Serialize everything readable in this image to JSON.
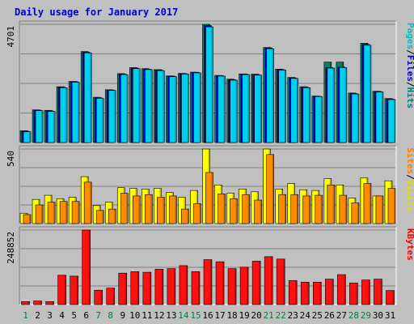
{
  "chart_data": {
    "type": "bar",
    "title": "Daily usage for January 2017",
    "categories": [
      "1",
      "2",
      "3",
      "4",
      "5",
      "6",
      "7",
      "8",
      "9",
      "10",
      "11",
      "12",
      "13",
      "14",
      "15",
      "16",
      "17",
      "18",
      "19",
      "20",
      "21",
      "22",
      "23",
      "24",
      "25",
      "26",
      "27",
      "28",
      "29",
      "30",
      "31"
    ],
    "weekend_days": [
      "1",
      "7",
      "8",
      "14",
      "15",
      "21",
      "22",
      "28",
      "29"
    ],
    "panels": [
      {
        "id": "top",
        "ymax": 4701,
        "ymax_label": "4701",
        "legend": [
          {
            "text": "Pages",
            "color": "#00c0c0"
          },
          {
            "text": "/",
            "color": "#000000"
          },
          {
            "text": "Files",
            "color": "#0000cc"
          },
          {
            "text": "/",
            "color": "#000000"
          },
          {
            "text": "Hits",
            "color": "#008080"
          }
        ],
        "series": [
          {
            "name": "Hits",
            "color": "#00806a",
            "values": [
              470,
              1300,
              1280,
              2220,
              2430,
              3620,
              1800,
              2100,
              2740,
              2980,
              2940,
              2900,
              2650,
              2750,
              2800,
              4701,
              2670,
              2520,
              2730,
              2720,
              3780,
              2920,
              2590,
              2220,
              1850,
              3200,
              3200,
              1970,
              3950,
              2040,
              1750
            ]
          },
          {
            "name": "Files",
            "color": "#0000cc",
            "values": [
              450,
              1290,
              1260,
              2200,
              2420,
              3590,
              1780,
              2090,
              2720,
              2960,
              2920,
              2880,
              2640,
              2740,
              2790,
              4650,
              2660,
              2500,
              2720,
              2700,
              3760,
              2900,
              2570,
              2200,
              1840,
              2980,
              3000,
              1950,
              3900,
              2030,
              1730
            ]
          },
          {
            "name": "Pages",
            "color": "#00d0f0",
            "values": [
              430,
              1270,
              1240,
              2180,
              2400,
              3560,
              1760,
              2070,
              2700,
              2940,
              2900,
              2860,
              2620,
              2720,
              2770,
              4600,
              2640,
              2480,
              2700,
              2680,
              3730,
              2880,
              2550,
              2180,
              1830,
              2960,
              2980,
              1930,
              3870,
              2010,
              1710
            ]
          }
        ]
      },
      {
        "id": "middle",
        "ymax": 540,
        "ymax_label": "540",
        "legend": [
          {
            "text": "Sites",
            "color": "#ff8000"
          },
          {
            "text": "/",
            "color": "#000000"
          },
          {
            "text": "Visits",
            "color": "#e0e000"
          }
        ],
        "series": [
          {
            "name": "Visits",
            "color": "#ffff00",
            "values": [
              75,
              175,
              205,
              180,
              190,
              340,
              130,
              155,
              260,
              255,
              250,
              255,
              225,
              190,
              240,
              540,
              280,
              220,
              250,
              230,
              540,
              250,
              290,
              245,
              240,
              325,
              280,
              185,
              330,
              200,
              310
            ]
          },
          {
            "name": "Sites",
            "color": "#ff8c00",
            "values": [
              65,
              135,
              155,
              160,
              160,
              300,
              95,
              105,
              220,
              200,
              210,
              190,
              200,
              105,
              145,
              370,
              215,
              180,
              210,
              170,
              500,
              210,
              210,
              200,
              205,
              280,
              205,
              150,
              290,
              200,
              255
            ]
          }
        ]
      },
      {
        "id": "bottom",
        "ymax": 248852,
        "ymax_label": "248852",
        "legend": [
          {
            "text": "KBytes",
            "color": "#ff0000"
          }
        ],
        "series": [
          {
            "name": "KBytes",
            "color": "#ff1010",
            "values": [
              10000,
              12000,
              10000,
              98000,
              95000,
              248852,
              48000,
              55000,
              105000,
              110000,
              108000,
              118000,
              120000,
              130000,
              110000,
              150000,
              143000,
              120000,
              125000,
              145000,
              160000,
              152000,
              80000,
              75000,
              75000,
              85000,
              100000,
              72000,
              82000,
              85000,
              47000
            ]
          }
        ]
      }
    ]
  }
}
